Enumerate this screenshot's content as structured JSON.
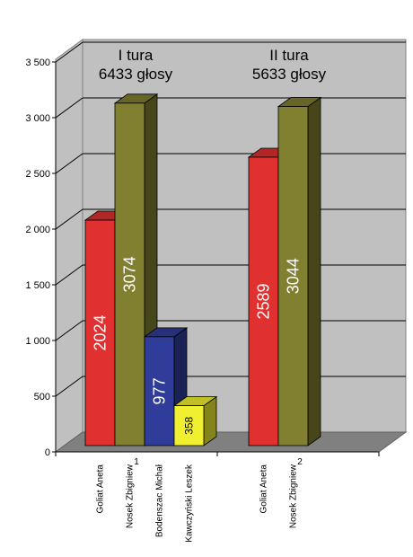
{
  "chart_data": {
    "type": "bar",
    "ylim": [
      0,
      3500
    ],
    "yticks": [
      0,
      500,
      1000,
      1500,
      2000,
      2500,
      3000,
      3500
    ],
    "ytick_labels": [
      "0",
      "500",
      "1 000",
      "1 500",
      "2 000",
      "2 500",
      "3 000",
      "3 500"
    ],
    "grid": true,
    "groups": [
      {
        "title": "I tura",
        "subtitle": "6433 głosy",
        "bars": [
          {
            "category": "Goliat Aneta",
            "value": 2024,
            "label": "2024",
            "color": "#e03030"
          },
          {
            "category": "Nosek Zbigniew",
            "value": 3074,
            "label": "3074",
            "color": "#808030"
          },
          {
            "category": "Bodenszac Michał",
            "value": 977,
            "label": "977",
            "color": "#303c9a"
          },
          {
            "category": "Kawczyński Leszek",
            "value": 358,
            "label": "358",
            "color": "#f0f030"
          }
        ]
      },
      {
        "title": "II tura",
        "subtitle": "5633 głosy",
        "bars": [
          {
            "category": "Goliat Aneta",
            "value": 2589,
            "label": "2589",
            "color": "#e03030"
          },
          {
            "category": "Nosek Zbigniew",
            "value": 3044,
            "label": "3044",
            "color": "#808030"
          }
        ]
      }
    ],
    "footnote_marks": [
      "1",
      "2"
    ]
  }
}
